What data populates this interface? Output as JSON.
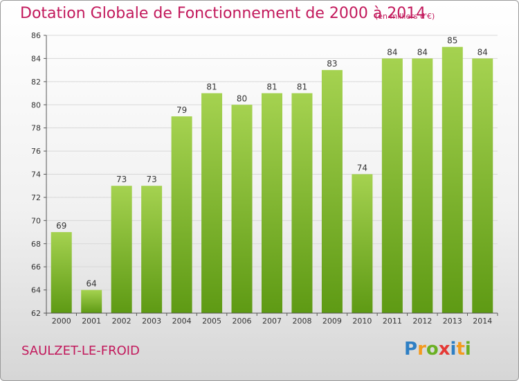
{
  "title": "Dotation Globale de Fonctionnement de 2000 à 2014",
  "unit_note": "(en milliers d'€)",
  "town": "SAULZET-LE-FROID",
  "logo": {
    "text": "Proxiti",
    "letters": [
      {
        "ch": "P",
        "color": "#2e7fc4"
      },
      {
        "ch": "r",
        "color": "#f39a1e"
      },
      {
        "ch": "o",
        "color": "#6ab023"
      },
      {
        "ch": "x",
        "color": "#e53935"
      },
      {
        "ch": "i",
        "color": "#2e7fc4"
      },
      {
        "ch": "t",
        "color": "#f39a1e"
      },
      {
        "ch": "i",
        "color": "#6ab023"
      }
    ]
  },
  "colors": {
    "accent": "#c2185b",
    "bar_top": "#a5d250",
    "bar_bottom": "#5e9a14",
    "grid": "#d8d8d8",
    "text": "#333333"
  },
  "chart_data": {
    "type": "bar",
    "title": "Dotation Globale de Fonctionnement de 2000 à 2014",
    "subtitle": "(en milliers d'€)",
    "xlabel": "",
    "ylabel": "",
    "categories": [
      "2000",
      "2001",
      "2002",
      "2003",
      "2004",
      "2005",
      "2006",
      "2007",
      "2008",
      "2009",
      "2010",
      "2011",
      "2012",
      "2013",
      "2014"
    ],
    "values": [
      69,
      64,
      73,
      73,
      79,
      81,
      80,
      81,
      81,
      83,
      74,
      84,
      84,
      85,
      84
    ],
    "ylim": [
      62,
      86
    ],
    "yticks": [
      62,
      64,
      66,
      68,
      70,
      72,
      74,
      76,
      78,
      80,
      82,
      84,
      86
    ],
    "grid": true,
    "data_labels": true
  }
}
